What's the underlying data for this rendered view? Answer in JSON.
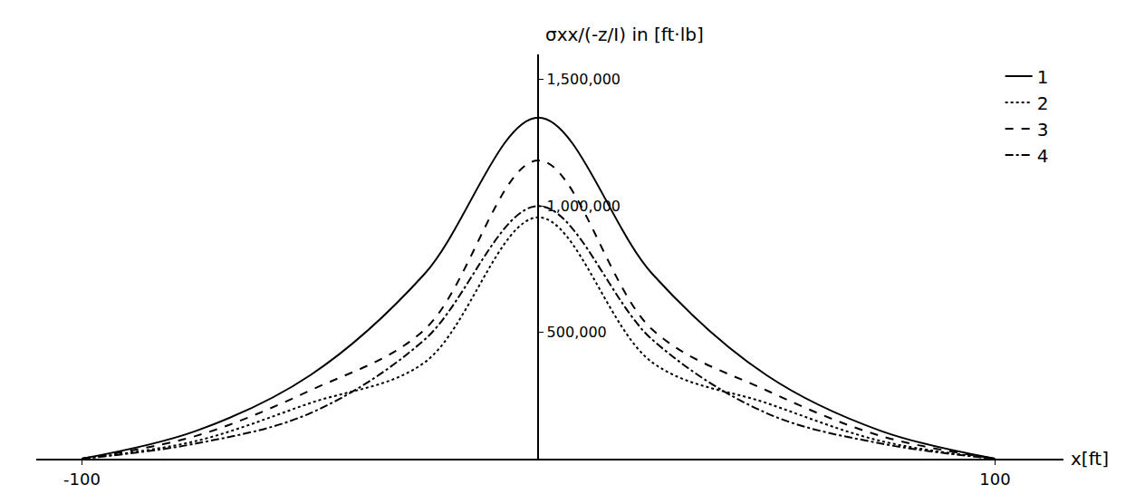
{
  "chart_data": {
    "type": "line",
    "x_label": "x[ft]",
    "y_label": "σxx/(-z/I) in [ft·lb]",
    "x": [
      -100,
      -75,
      -50,
      -25,
      0,
      25,
      50,
      75,
      100
    ],
    "series": [
      {
        "name": "1",
        "color": "#000000",
        "line_style": "solid",
        "values": [
          0,
          110000,
          330000,
          730000,
          1350000,
          730000,
          330000,
          110000,
          0
        ]
      },
      {
        "name": "2",
        "color": "#000000",
        "line_style": "dotted",
        "values": [
          0,
          70000,
          220000,
          380000,
          955000,
          380000,
          220000,
          70000,
          0
        ]
      },
      {
        "name": "3",
        "color": "#000000",
        "line_style": "dashed",
        "values": [
          0,
          90000,
          270000,
          510000,
          1180000,
          510000,
          270000,
          90000,
          0
        ]
      },
      {
        "name": "4",
        "color": "#000000",
        "line_style": "dashdot",
        "values": [
          0,
          60000,
          180000,
          470000,
          1000000,
          470000,
          180000,
          60000,
          0
        ]
      }
    ],
    "xlim": [
      -110,
      115
    ],
    "xticks": [
      -100,
      100
    ],
    "ylim": [
      0,
      1600000
    ],
    "yticks": [
      {
        "value": 500000,
        "label": "500,000"
      },
      {
        "value": 1000000,
        "label": "1,000,000"
      },
      {
        "value": 1500000,
        "label": "1,500,000"
      }
    ],
    "grid": false,
    "legend": "upper right"
  }
}
